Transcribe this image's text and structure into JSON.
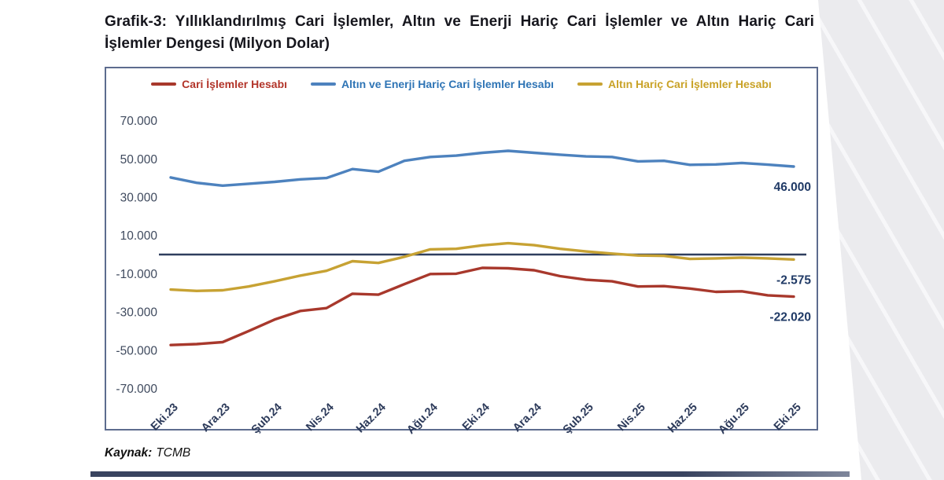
{
  "page": {
    "title": "Grafik-3: Yıllıklandırılmış Cari İşlemler, Altın ve Enerji Hariç Cari İşlemler ve Altın Hariç Cari İşlemler Dengesi (Milyon Dolar)",
    "source_label": "Kaynak:",
    "source_value": "TCMB"
  },
  "colors": {
    "series_red": "#a8382c",
    "series_blue": "#4d82be",
    "series_gold": "#c7a233",
    "legend_red_text": "#b23429",
    "legend_blue_text": "#2e74b5",
    "legend_gold_text": "#c9a227",
    "axis_navy": "#2f3e5e",
    "y_tick_text": "#3f4a5e",
    "x_tick_text": "#2c3a5a",
    "end_label_text": "#203a66",
    "box_border": "#5d6c8e",
    "bottom_bar": "#3c4560"
  },
  "chart_data": {
    "type": "line",
    "title": "Grafik-3: Yıllıklandırılmış Cari İşlemler, Altın ve Enerji Hariç Cari İşlemler ve Altın Hariç Cari İşlemler Dengesi (Milyon Dolar)",
    "unit": "Milyon Dolar",
    "legend_position": "top",
    "grid": "zero-line-only",
    "zero_line": true,
    "n_points": 25,
    "tick_every_n_points": 2,
    "x_tick_labels": [
      "Eki.23",
      "Ara.23",
      "Şub.24",
      "Nis.24",
      "Haz.24",
      "Ağu.24",
      "Eki.24",
      "Ara.24",
      "Şub.25",
      "Nis.25",
      "Haz.25",
      "Ağu.25",
      "Eki.25"
    ],
    "y_ticks": [
      {
        "label": "70.000",
        "value": 70000
      },
      {
        "label": "50.000",
        "value": 50000
      },
      {
        "label": "30.000",
        "value": 30000
      },
      {
        "label": "10.000",
        "value": 10000
      },
      {
        "label": "-10.000",
        "value": -10000
      },
      {
        "label": "-30.000",
        "value": -30000
      },
      {
        "label": "-50.000",
        "value": -50000
      },
      {
        "label": "-70.000",
        "value": -70000
      }
    ],
    "ylim": [
      -75000,
      75000
    ],
    "series": [
      {
        "id": "cari-islemler",
        "name": "Cari İşlemler Hesabı",
        "color": "#a8382c",
        "label_color": "#b23429",
        "end_label": "-22.020",
        "values": [
          -47300,
          -46800,
          -45800,
          -40000,
          -34000,
          -29500,
          -28000,
          -20500,
          -21000,
          -15500,
          -10200,
          -10000,
          -7000,
          -7200,
          -8200,
          -11300,
          -13200,
          -14000,
          -16700,
          -16500,
          -17800,
          -19500,
          -19200,
          -21300,
          -22020
        ]
      },
      {
        "id": "altin-enerji-haric",
        "name": "Altın ve Enerji Hariç Cari İşlemler Hesabı",
        "color": "#4d82be",
        "label_color": "#2e74b5",
        "end_label": "46.000",
        "values": [
          40300,
          37500,
          36000,
          37000,
          38000,
          39300,
          40000,
          44700,
          43300,
          49000,
          51000,
          51700,
          53200,
          54200,
          53200,
          52200,
          51300,
          51000,
          48700,
          49000,
          46900,
          47100,
          47900,
          47000,
          46000
        ]
      },
      {
        "id": "altin-haric",
        "name": "Altın Hariç Cari İşlemler Hesabı",
        "color": "#c7a233",
        "label_color": "#c9a227",
        "end_label": "-2.575",
        "values": [
          -18300,
          -19000,
          -18700,
          -16700,
          -14000,
          -11000,
          -8500,
          -3500,
          -4400,
          -1200,
          2700,
          3000,
          4800,
          5900,
          4900,
          3000,
          1600,
          500,
          -500,
          -700,
          -2300,
          -2000,
          -1600,
          -2000,
          -2575
        ]
      }
    ]
  }
}
